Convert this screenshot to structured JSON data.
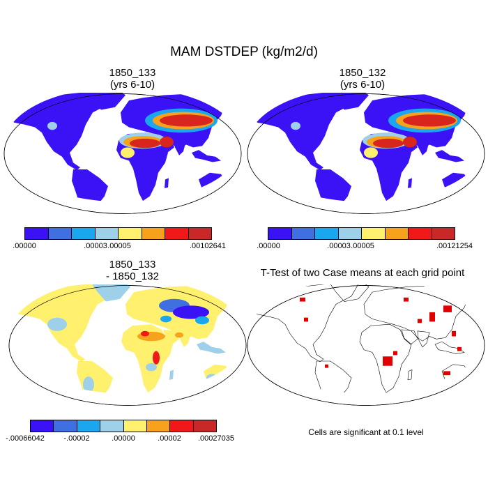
{
  "figure": {
    "title": "MAM DSTDEP (kg/m2/d)"
  },
  "panels": [
    {
      "id": "p1",
      "title_line1": "1850_133",
      "title_line2": "(yrs 6-10)"
    },
    {
      "id": "p2",
      "title_line1": "1850_132",
      "title_line2": "(yrs 6-10)"
    },
    {
      "id": "p3",
      "title_line1": "1850_133",
      "title_line2": "- 1850_132"
    },
    {
      "id": "p4",
      "title_line1": "T-Test of two Case means at each grid point",
      "title_line2": ""
    }
  ],
  "colorbars": {
    "cb1": {
      "colors": [
        "#3a12f5",
        "#3f6fe0",
        "#1aa7f0",
        "#9fd0ea",
        "#fff06e",
        "#f6a21c",
        "#f01818",
        "#c82828"
      ],
      "labels": [
        ".00000",
        ".00003",
        ".00005",
        ".00102641"
      ]
    },
    "cb2": {
      "colors": [
        "#3a12f5",
        "#3f6fe0",
        "#1aa7f0",
        "#9fd0ea",
        "#fff06e",
        "#f6a21c",
        "#f01818",
        "#c82828"
      ],
      "labels": [
        ".00000",
        ".00003",
        ".00005",
        ".00121254"
      ]
    },
    "cb3": {
      "colors": [
        "#3a12f5",
        "#3f6fe0",
        "#1aa7f0",
        "#9fd0ea",
        "#fff06e",
        "#f6a21c",
        "#f01818",
        "#c82828"
      ],
      "labels": [
        "-.00066042",
        "-.00002",
        ".00000",
        ".00002",
        ".00027035"
      ]
    }
  },
  "ttest_note": "Cells are significant at 0.1 level",
  "colors": {
    "land_low": "#3a12f5",
    "dust_high": "#d8261e",
    "diff_neutral": "#fff06e",
    "diff_light": "#9fd0ea",
    "sig": "#e00000"
  }
}
